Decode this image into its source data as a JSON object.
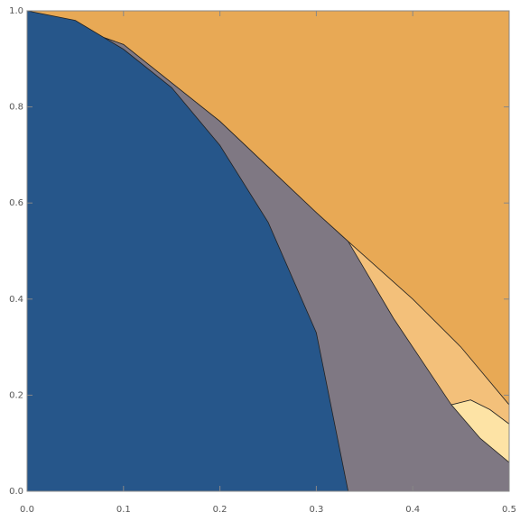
{
  "chart_data": {
    "type": "region",
    "xlim": [
      0,
      0.5
    ],
    "ylim": [
      0,
      1
    ],
    "xticks": [
      {
        "value": 0,
        "label": "0.0"
      },
      0.1,
      0.2,
      0.3,
      0.4,
      0.5
    ],
    "yticks": [
      {
        "value": 0,
        "label": "0.0"
      },
      0.2,
      0.4,
      0.6,
      0.8,
      {
        "value": 1,
        "label": "1.0"
      }
    ],
    "regions": [
      {
        "color": "#e8a955",
        "x": [
          0,
          0,
          0.5,
          0.5
        ],
        "y": [
          0,
          1,
          1,
          0
        ]
      },
      {
        "color": "#f3c07a",
        "x": [
          0,
          0.1,
          0.2,
          0.3,
          0.333,
          0.4,
          0.45,
          0.5,
          0.5,
          0
        ],
        "y": [
          1,
          0.93,
          0.77,
          0.58,
          0.52,
          0.4,
          0.3,
          0.18,
          0,
          0
        ]
      },
      {
        "color": "#fde3a5",
        "x": [
          0.44,
          0.46,
          0.48,
          0.5,
          0.5,
          0.44
        ],
        "y": [
          0.18,
          0.19,
          0.17,
          0.14,
          0,
          0
        ]
      },
      {
        "color": "#7f7883",
        "x": [
          0,
          0.1,
          0.2,
          0.3,
          0.333,
          0.38,
          0.44,
          0.47,
          0.5,
          0.5,
          0
        ],
        "y": [
          1,
          0.93,
          0.77,
          0.58,
          0.52,
          0.36,
          0.18,
          0.11,
          0.06,
          0,
          0
        ]
      },
      {
        "color": "#26568a",
        "x": [
          0,
          0,
          0.05,
          0.1,
          0.15,
          0.2,
          0.25,
          0.3,
          0.333
        ],
        "y": [
          0,
          1,
          0.98,
          0.92,
          0.84,
          0.72,
          0.56,
          0.33,
          0
        ]
      }
    ]
  }
}
